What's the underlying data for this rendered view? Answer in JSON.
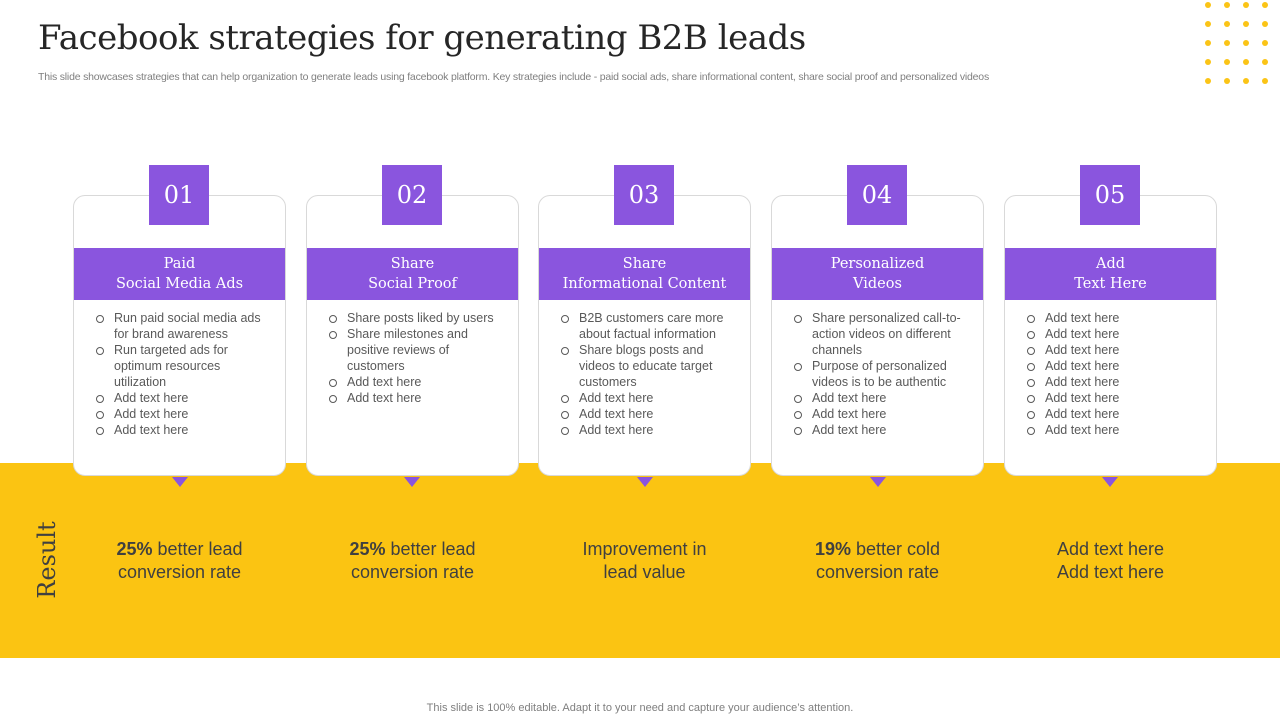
{
  "title": "Facebook strategies for generating B2B leads",
  "subtitle": "This slide showcases strategies that can help organization to generate leads using facebook platform. Key strategies include - paid social ads, share informational content, share social proof and personalized videos",
  "result_label": "Result",
  "footer": "This slide is 100% editable. Adapt it to your need and capture your audience’s attention.",
  "colors": {
    "accent": "#8A55DE",
    "band": "#FBC412"
  },
  "cards": [
    {
      "number": "01",
      "heading": [
        "Paid",
        "Social Media Ads"
      ],
      "items": [
        "Run paid social media ads for brand awareness",
        "Run targeted ads for optimum resources utilization",
        "Add text here",
        "Add text here",
        "Add text here"
      ],
      "result_bold": "25%",
      "result_rest": " better lead",
      "result_line2": "conversion rate"
    },
    {
      "number": "02",
      "heading": [
        "Share",
        "Social Proof"
      ],
      "items": [
        "Share posts liked by users",
        "Share milestones and positive reviews of customers",
        "Add text here",
        "Add text here"
      ],
      "result_bold": "25%",
      "result_rest": " better lead",
      "result_line2": "conversion rate"
    },
    {
      "number": "03",
      "heading": [
        "Share",
        "Informational Content"
      ],
      "items": [
        "B2B customers care more about factual information",
        "Share blogs posts and videos to educate target customers",
        "Add text here",
        "Add text here",
        "Add text here"
      ],
      "result_bold": "",
      "result_rest": "Improvement in",
      "result_line2": "lead value"
    },
    {
      "number": "04",
      "heading": [
        "Personalized",
        "Videos"
      ],
      "items": [
        "Share personalized call-to-action videos on different channels",
        "Purpose of personalized videos is to be authentic",
        "Add text here",
        "Add text here",
        "Add text here"
      ],
      "result_bold": "19%",
      "result_rest": " better cold",
      "result_line2": "conversion rate"
    },
    {
      "number": "05",
      "heading": [
        "Add",
        "Text Here"
      ],
      "items": [
        "Add text here",
        "Add text here",
        "Add text here",
        "Add text here",
        "Add text here",
        "Add text here",
        "Add text here",
        "Add text here"
      ],
      "result_bold": "",
      "result_rest": "Add text here",
      "result_line2": "Add text here"
    }
  ]
}
